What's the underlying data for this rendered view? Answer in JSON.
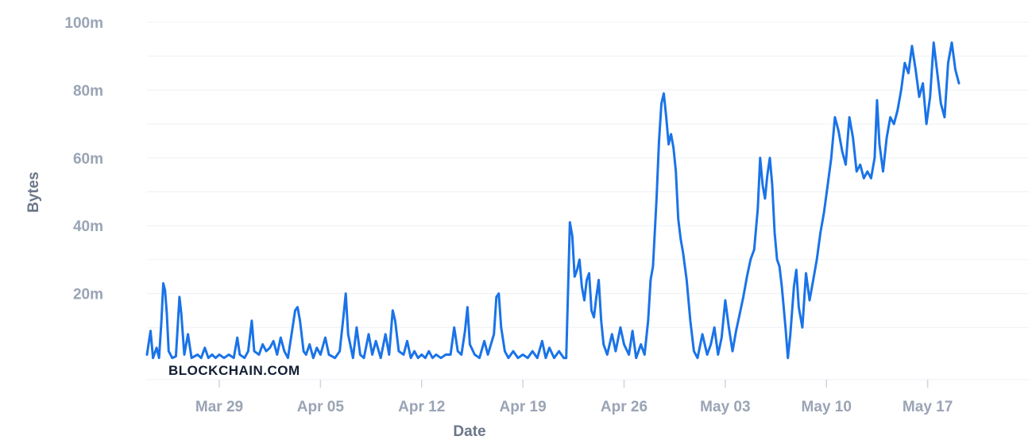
{
  "watermark": "BLOCKCHAIN.COM",
  "colors": {
    "line": "#1a73e8",
    "grid": "#eef0f4",
    "tick_text": "#9aa4b5",
    "axis_label": "#6b7689",
    "watermark": "#121d33"
  },
  "chart_data": {
    "type": "line",
    "title": "",
    "xlabel": "Date",
    "ylabel": "Bytes",
    "ylim": [
      0,
      100000000
    ],
    "xlim": [
      "2023-03-24",
      "2023-05-24"
    ],
    "grid": true,
    "y_ticks": [
      {
        "value": 20000000,
        "label": "20m"
      },
      {
        "value": 40000000,
        "label": "40m"
      },
      {
        "value": 60000000,
        "label": "60m"
      },
      {
        "value": 80000000,
        "label": "80m"
      },
      {
        "value": 100000000,
        "label": "100m"
      }
    ],
    "x_ticks": [
      {
        "value": "2023-03-29",
        "label": "Mar 29"
      },
      {
        "value": "2023-04-05",
        "label": "Apr 05"
      },
      {
        "value": "2023-04-12",
        "label": "Apr 12"
      },
      {
        "value": "2023-04-19",
        "label": "Apr 19"
      },
      {
        "value": "2023-04-26",
        "label": "Apr 26"
      },
      {
        "value": "2023-05-03",
        "label": "May 03"
      },
      {
        "value": "2023-05-10",
        "label": "May 10"
      },
      {
        "value": "2023-05-17",
        "label": "May 17"
      }
    ],
    "series": [
      {
        "values": [
          [
            "2023-03-24T00:00",
            2000000
          ],
          [
            "2023-03-24T06:00",
            9000000
          ],
          [
            "2023-03-24T10:00",
            1000000
          ],
          [
            "2023-03-24T16:00",
            4000000
          ],
          [
            "2023-03-24T20:00",
            1000000
          ],
          [
            "2023-03-25T00:00",
            12000000
          ],
          [
            "2023-03-25T03:00",
            23000000
          ],
          [
            "2023-03-25T06:00",
            21000000
          ],
          [
            "2023-03-25T09:00",
            14000000
          ],
          [
            "2023-03-25T12:00",
            3000000
          ],
          [
            "2023-03-25T18:00",
            1000000
          ],
          [
            "2023-03-26T00:00",
            1500000
          ],
          [
            "2023-03-26T06:00",
            19000000
          ],
          [
            "2023-03-26T09:00",
            14000000
          ],
          [
            "2023-03-26T14:00",
            2000000
          ],
          [
            "2023-03-26T20:00",
            8000000
          ],
          [
            "2023-03-27T02:00",
            1000000
          ],
          [
            "2023-03-27T12:00",
            2000000
          ],
          [
            "2023-03-27T18:00",
            1000000
          ],
          [
            "2023-03-28T00:00",
            4000000
          ],
          [
            "2023-03-28T06:00",
            1000000
          ],
          [
            "2023-03-28T12:00",
            2000000
          ],
          [
            "2023-03-28T18:00",
            1000000
          ],
          [
            "2023-03-29T00:00",
            2000000
          ],
          [
            "2023-03-29T08:00",
            1000000
          ],
          [
            "2023-03-29T16:00",
            2000000
          ],
          [
            "2023-03-30T00:00",
            1000000
          ],
          [
            "2023-03-30T06:00",
            7000000
          ],
          [
            "2023-03-30T10:00",
            2000000
          ],
          [
            "2023-03-30T18:00",
            1000000
          ],
          [
            "2023-03-31T00:00",
            3000000
          ],
          [
            "2023-03-31T06:00",
            12000000
          ],
          [
            "2023-03-31T10:00",
            3000000
          ],
          [
            "2023-03-31T18:00",
            2000000
          ],
          [
            "2023-04-01T00:00",
            5000000
          ],
          [
            "2023-04-01T06:00",
            3000000
          ],
          [
            "2023-04-01T12:00",
            4000000
          ],
          [
            "2023-04-01T18:00",
            6000000
          ],
          [
            "2023-04-02T00:00",
            2000000
          ],
          [
            "2023-04-02T06:00",
            7000000
          ],
          [
            "2023-04-02T12:00",
            3000000
          ],
          [
            "2023-04-02T18:00",
            1000000
          ],
          [
            "2023-04-03T00:00",
            8000000
          ],
          [
            "2023-04-03T06:00",
            15000000
          ],
          [
            "2023-04-03T10:00",
            16000000
          ],
          [
            "2023-04-03T14:00",
            12000000
          ],
          [
            "2023-04-03T20:00",
            3000000
          ],
          [
            "2023-04-04T00:00",
            2000000
          ],
          [
            "2023-04-04T06:00",
            5000000
          ],
          [
            "2023-04-04T12:00",
            1000000
          ],
          [
            "2023-04-04T18:00",
            4000000
          ],
          [
            "2023-04-05T00:00",
            2000000
          ],
          [
            "2023-04-05T08:00",
            7000000
          ],
          [
            "2023-04-05T14:00",
            2000000
          ],
          [
            "2023-04-06T00:00",
            1000000
          ],
          [
            "2023-04-06T08:00",
            3000000
          ],
          [
            "2023-04-06T14:00",
            13000000
          ],
          [
            "2023-04-06T18:00",
            20000000
          ],
          [
            "2023-04-06T22:00",
            8000000
          ],
          [
            "2023-04-07T06:00",
            1000000
          ],
          [
            "2023-04-07T12:00",
            10000000
          ],
          [
            "2023-04-07T18:00",
            2000000
          ],
          [
            "2023-04-08T00:00",
            1000000
          ],
          [
            "2023-04-08T08:00",
            8000000
          ],
          [
            "2023-04-08T14:00",
            2000000
          ],
          [
            "2023-04-08T20:00",
            6000000
          ],
          [
            "2023-04-09T04:00",
            1000000
          ],
          [
            "2023-04-09T12:00",
            8000000
          ],
          [
            "2023-04-09T18:00",
            2000000
          ],
          [
            "2023-04-10T00:00",
            15000000
          ],
          [
            "2023-04-10T04:00",
            12000000
          ],
          [
            "2023-04-10T10:00",
            3000000
          ],
          [
            "2023-04-10T18:00",
            2000000
          ],
          [
            "2023-04-11T00:00",
            6000000
          ],
          [
            "2023-04-11T06:00",
            1000000
          ],
          [
            "2023-04-11T12:00",
            3000000
          ],
          [
            "2023-04-11T18:00",
            1000000
          ],
          [
            "2023-04-12T00:00",
            2000000
          ],
          [
            "2023-04-12T06:00",
            1000000
          ],
          [
            "2023-04-12T12:00",
            3000000
          ],
          [
            "2023-04-12T18:00",
            1000000
          ],
          [
            "2023-04-13T00:00",
            2000000
          ],
          [
            "2023-04-13T08:00",
            1000000
          ],
          [
            "2023-04-13T16:00",
            2000000
          ],
          [
            "2023-04-14T00:00",
            2000000
          ],
          [
            "2023-04-14T06:00",
            10000000
          ],
          [
            "2023-04-14T12:00",
            3000000
          ],
          [
            "2023-04-14T18:00",
            2000000
          ],
          [
            "2023-04-15T00:00",
            9000000
          ],
          [
            "2023-04-15T04:00",
            16000000
          ],
          [
            "2023-04-15T08:00",
            5000000
          ],
          [
            "2023-04-15T16:00",
            2000000
          ],
          [
            "2023-04-16T00:00",
            1000000
          ],
          [
            "2023-04-16T08:00",
            6000000
          ],
          [
            "2023-04-16T14:00",
            2000000
          ],
          [
            "2023-04-17T00:00",
            8000000
          ],
          [
            "2023-04-17T04:00",
            19000000
          ],
          [
            "2023-04-17T08:00",
            20000000
          ],
          [
            "2023-04-17T12:00",
            10000000
          ],
          [
            "2023-04-17T18:00",
            3000000
          ],
          [
            "2023-04-18T00:00",
            1000000
          ],
          [
            "2023-04-18T08:00",
            3000000
          ],
          [
            "2023-04-18T16:00",
            1000000
          ],
          [
            "2023-04-19T00:00",
            2000000
          ],
          [
            "2023-04-19T08:00",
            1000000
          ],
          [
            "2023-04-19T16:00",
            3000000
          ],
          [
            "2023-04-20T00:00",
            1000000
          ],
          [
            "2023-04-20T08:00",
            6000000
          ],
          [
            "2023-04-20T14:00",
            1000000
          ],
          [
            "2023-04-20T20:00",
            4000000
          ],
          [
            "2023-04-21T04:00",
            1000000
          ],
          [
            "2023-04-21T12:00",
            3000000
          ],
          [
            "2023-04-21T20:00",
            1000000
          ],
          [
            "2023-04-22T00:00",
            1000000
          ],
          [
            "2023-04-22T06:00",
            41000000
          ],
          [
            "2023-04-22T10:00",
            37000000
          ],
          [
            "2023-04-22T14:00",
            25000000
          ],
          [
            "2023-04-22T18:00",
            27000000
          ],
          [
            "2023-04-22T22:00",
            30000000
          ],
          [
            "2023-04-23T02:00",
            22000000
          ],
          [
            "2023-04-23T06:00",
            18000000
          ],
          [
            "2023-04-23T10:00",
            24000000
          ],
          [
            "2023-04-23T14:00",
            26000000
          ],
          [
            "2023-04-23T18:00",
            15000000
          ],
          [
            "2023-04-23T22:00",
            13000000
          ],
          [
            "2023-04-24T02:00",
            19000000
          ],
          [
            "2023-04-24T06:00",
            24000000
          ],
          [
            "2023-04-24T10:00",
            12000000
          ],
          [
            "2023-04-24T14:00",
            5000000
          ],
          [
            "2023-04-24T20:00",
            2000000
          ],
          [
            "2023-04-25T04:00",
            8000000
          ],
          [
            "2023-04-25T10:00",
            3000000
          ],
          [
            "2023-04-25T18:00",
            10000000
          ],
          [
            "2023-04-26T00:00",
            5000000
          ],
          [
            "2023-04-26T08:00",
            2000000
          ],
          [
            "2023-04-26T14:00",
            9000000
          ],
          [
            "2023-04-26T20:00",
            1000000
          ],
          [
            "2023-04-27T04:00",
            5000000
          ],
          [
            "2023-04-27T10:00",
            2000000
          ],
          [
            "2023-04-27T16:00",
            12000000
          ],
          [
            "2023-04-27T20:00",
            24000000
          ],
          [
            "2023-04-28T00:00",
            28000000
          ],
          [
            "2023-04-28T06:00",
            48000000
          ],
          [
            "2023-04-28T10:00",
            65000000
          ],
          [
            "2023-04-28T14:00",
            76000000
          ],
          [
            "2023-04-28T18:00",
            79000000
          ],
          [
            "2023-04-28T22:00",
            72000000
          ],
          [
            "2023-04-29T02:00",
            64000000
          ],
          [
            "2023-04-29T06:00",
            67000000
          ],
          [
            "2023-04-29T10:00",
            63000000
          ],
          [
            "2023-04-29T14:00",
            56000000
          ],
          [
            "2023-04-29T18:00",
            42000000
          ],
          [
            "2023-04-29T22:00",
            36000000
          ],
          [
            "2023-04-30T02:00",
            32000000
          ],
          [
            "2023-04-30T08:00",
            24000000
          ],
          [
            "2023-04-30T14:00",
            12000000
          ],
          [
            "2023-04-30T20:00",
            3000000
          ],
          [
            "2023-05-01T02:00",
            1000000
          ],
          [
            "2023-05-01T10:00",
            8000000
          ],
          [
            "2023-05-01T18:00",
            2000000
          ],
          [
            "2023-05-02T00:00",
            5000000
          ],
          [
            "2023-05-02T06:00",
            10000000
          ],
          [
            "2023-05-02T12:00",
            2000000
          ],
          [
            "2023-05-02T18:00",
            7000000
          ],
          [
            "2023-05-03T00:00",
            18000000
          ],
          [
            "2023-05-03T06:00",
            10000000
          ],
          [
            "2023-05-03T12:00",
            3000000
          ],
          [
            "2023-05-03T18:00",
            9000000
          ],
          [
            "2023-05-04T00:00",
            14000000
          ],
          [
            "2023-05-04T06:00",
            19000000
          ],
          [
            "2023-05-04T12:00",
            25000000
          ],
          [
            "2023-05-04T18:00",
            30000000
          ],
          [
            "2023-05-05T00:00",
            33000000
          ],
          [
            "2023-05-05T06:00",
            45000000
          ],
          [
            "2023-05-05T10:00",
            60000000
          ],
          [
            "2023-05-05T14:00",
            52000000
          ],
          [
            "2023-05-05T18:00",
            48000000
          ],
          [
            "2023-05-05T22:00",
            55000000
          ],
          [
            "2023-05-06T02:00",
            60000000
          ],
          [
            "2023-05-06T06:00",
            52000000
          ],
          [
            "2023-05-06T10:00",
            38000000
          ],
          [
            "2023-05-06T14:00",
            30000000
          ],
          [
            "2023-05-06T18:00",
            28000000
          ],
          [
            "2023-05-06T22:00",
            22000000
          ],
          [
            "2023-05-07T04:00",
            10000000
          ],
          [
            "2023-05-07T08:00",
            1000000
          ],
          [
            "2023-05-07T12:00",
            8000000
          ],
          [
            "2023-05-07T18:00",
            22000000
          ],
          [
            "2023-05-07T22:00",
            27000000
          ],
          [
            "2023-05-08T02:00",
            16000000
          ],
          [
            "2023-05-08T08:00",
            10000000
          ],
          [
            "2023-05-08T14:00",
            26000000
          ],
          [
            "2023-05-08T20:00",
            18000000
          ],
          [
            "2023-05-09T02:00",
            24000000
          ],
          [
            "2023-05-09T08:00",
            30000000
          ],
          [
            "2023-05-09T14:00",
            38000000
          ],
          [
            "2023-05-09T20:00",
            44000000
          ],
          [
            "2023-05-10T02:00",
            52000000
          ],
          [
            "2023-05-10T08:00",
            60000000
          ],
          [
            "2023-05-10T14:00",
            72000000
          ],
          [
            "2023-05-10T20:00",
            68000000
          ],
          [
            "2023-05-11T02:00",
            62000000
          ],
          [
            "2023-05-11T08:00",
            58000000
          ],
          [
            "2023-05-11T14:00",
            72000000
          ],
          [
            "2023-05-11T20:00",
            66000000
          ],
          [
            "2023-05-12T02:00",
            56000000
          ],
          [
            "2023-05-12T08:00",
            58000000
          ],
          [
            "2023-05-12T14:00",
            54000000
          ],
          [
            "2023-05-12T20:00",
            56000000
          ],
          [
            "2023-05-13T02:00",
            54000000
          ],
          [
            "2023-05-13T08:00",
            60000000
          ],
          [
            "2023-05-13T12:00",
            77000000
          ],
          [
            "2023-05-13T16:00",
            64000000
          ],
          [
            "2023-05-13T22:00",
            56000000
          ],
          [
            "2023-05-14T04:00",
            66000000
          ],
          [
            "2023-05-14T10:00",
            72000000
          ],
          [
            "2023-05-14T16:00",
            70000000
          ],
          [
            "2023-05-14T22:00",
            74000000
          ],
          [
            "2023-05-15T04:00",
            80000000
          ],
          [
            "2023-05-15T10:00",
            88000000
          ],
          [
            "2023-05-15T16:00",
            85000000
          ],
          [
            "2023-05-15T22:00",
            93000000
          ],
          [
            "2023-05-16T04:00",
            86000000
          ],
          [
            "2023-05-16T10:00",
            78000000
          ],
          [
            "2023-05-16T16:00",
            82000000
          ],
          [
            "2023-05-16T22:00",
            70000000
          ],
          [
            "2023-05-17T04:00",
            78000000
          ],
          [
            "2023-05-17T10:00",
            94000000
          ],
          [
            "2023-05-17T16:00",
            85000000
          ],
          [
            "2023-05-17T22:00",
            76000000
          ],
          [
            "2023-05-18T04:00",
            72000000
          ],
          [
            "2023-05-18T10:00",
            88000000
          ],
          [
            "2023-05-18T16:00",
            94000000
          ],
          [
            "2023-05-18T22:00",
            86000000
          ],
          [
            "2023-05-19T04:00",
            82000000
          ]
        ]
      }
    ]
  }
}
